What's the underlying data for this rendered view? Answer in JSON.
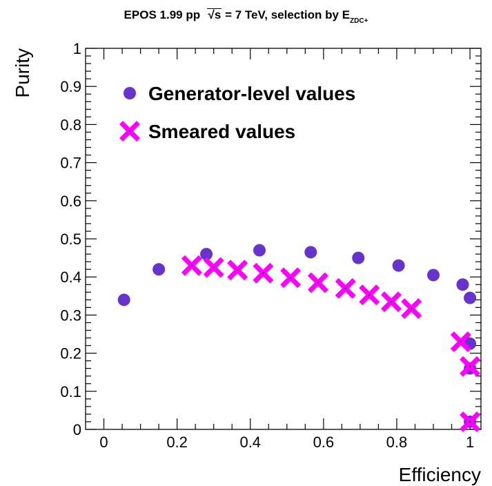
{
  "title": {
    "prefix": "EPOS 1.99 pp",
    "sqrt_symbol": "√",
    "sqrt_var": "s",
    "energy": "= 7 TeV, selection by E",
    "subscript": "ZDC+"
  },
  "chart_data": {
    "type": "scatter",
    "xlabel": "Efficiency",
    "ylabel": "Purity",
    "xlim": [
      -0.05,
      1.03
    ],
    "ylim": [
      0,
      1
    ],
    "x_ticks": [
      0,
      0.2,
      0.4,
      0.6,
      0.8,
      1
    ],
    "x_tick_labels": [
      "0",
      "0.2",
      "0.4",
      "0.6",
      "0.8",
      "1"
    ],
    "y_ticks": [
      0,
      0.1,
      0.2,
      0.3,
      0.4,
      0.5,
      0.6,
      0.7,
      0.8,
      0.9,
      1
    ],
    "y_tick_labels": [
      "0",
      "0.1",
      "0.2",
      "0.3",
      "0.4",
      "0.5",
      "0.6",
      "0.7",
      "0.8",
      "0.9",
      "1"
    ],
    "grid": false,
    "legend_position": "top-left",
    "series": [
      {
        "name": "Generator-level values",
        "marker": "circle",
        "color": "#6633cc",
        "points": [
          {
            "x": 0.055,
            "y": 0.34
          },
          {
            "x": 0.15,
            "y": 0.42
          },
          {
            "x": 0.28,
            "y": 0.46
          },
          {
            "x": 0.425,
            "y": 0.47
          },
          {
            "x": 0.565,
            "y": 0.465
          },
          {
            "x": 0.695,
            "y": 0.45
          },
          {
            "x": 0.805,
            "y": 0.43
          },
          {
            "x": 0.9,
            "y": 0.405
          },
          {
            "x": 0.98,
            "y": 0.38
          },
          {
            "x": 1.0,
            "y": 0.345
          },
          {
            "x": 1.0,
            "y": 0.225
          },
          {
            "x": 1.0,
            "y": 0.16
          },
          {
            "x": 1.0,
            "y": 0.02
          }
        ]
      },
      {
        "name": "Smeared values",
        "marker": "cross",
        "color": "#ff00ff",
        "points": [
          {
            "x": 0.24,
            "y": 0.43
          },
          {
            "x": 0.3,
            "y": 0.425
          },
          {
            "x": 0.365,
            "y": 0.418
          },
          {
            "x": 0.435,
            "y": 0.41
          },
          {
            "x": 0.51,
            "y": 0.398
          },
          {
            "x": 0.585,
            "y": 0.385
          },
          {
            "x": 0.66,
            "y": 0.37
          },
          {
            "x": 0.725,
            "y": 0.353
          },
          {
            "x": 0.785,
            "y": 0.335
          },
          {
            "x": 0.84,
            "y": 0.317
          },
          {
            "x": 0.975,
            "y": 0.23
          },
          {
            "x": 1.0,
            "y": 0.165
          },
          {
            "x": 1.0,
            "y": 0.02
          }
        ]
      }
    ]
  }
}
